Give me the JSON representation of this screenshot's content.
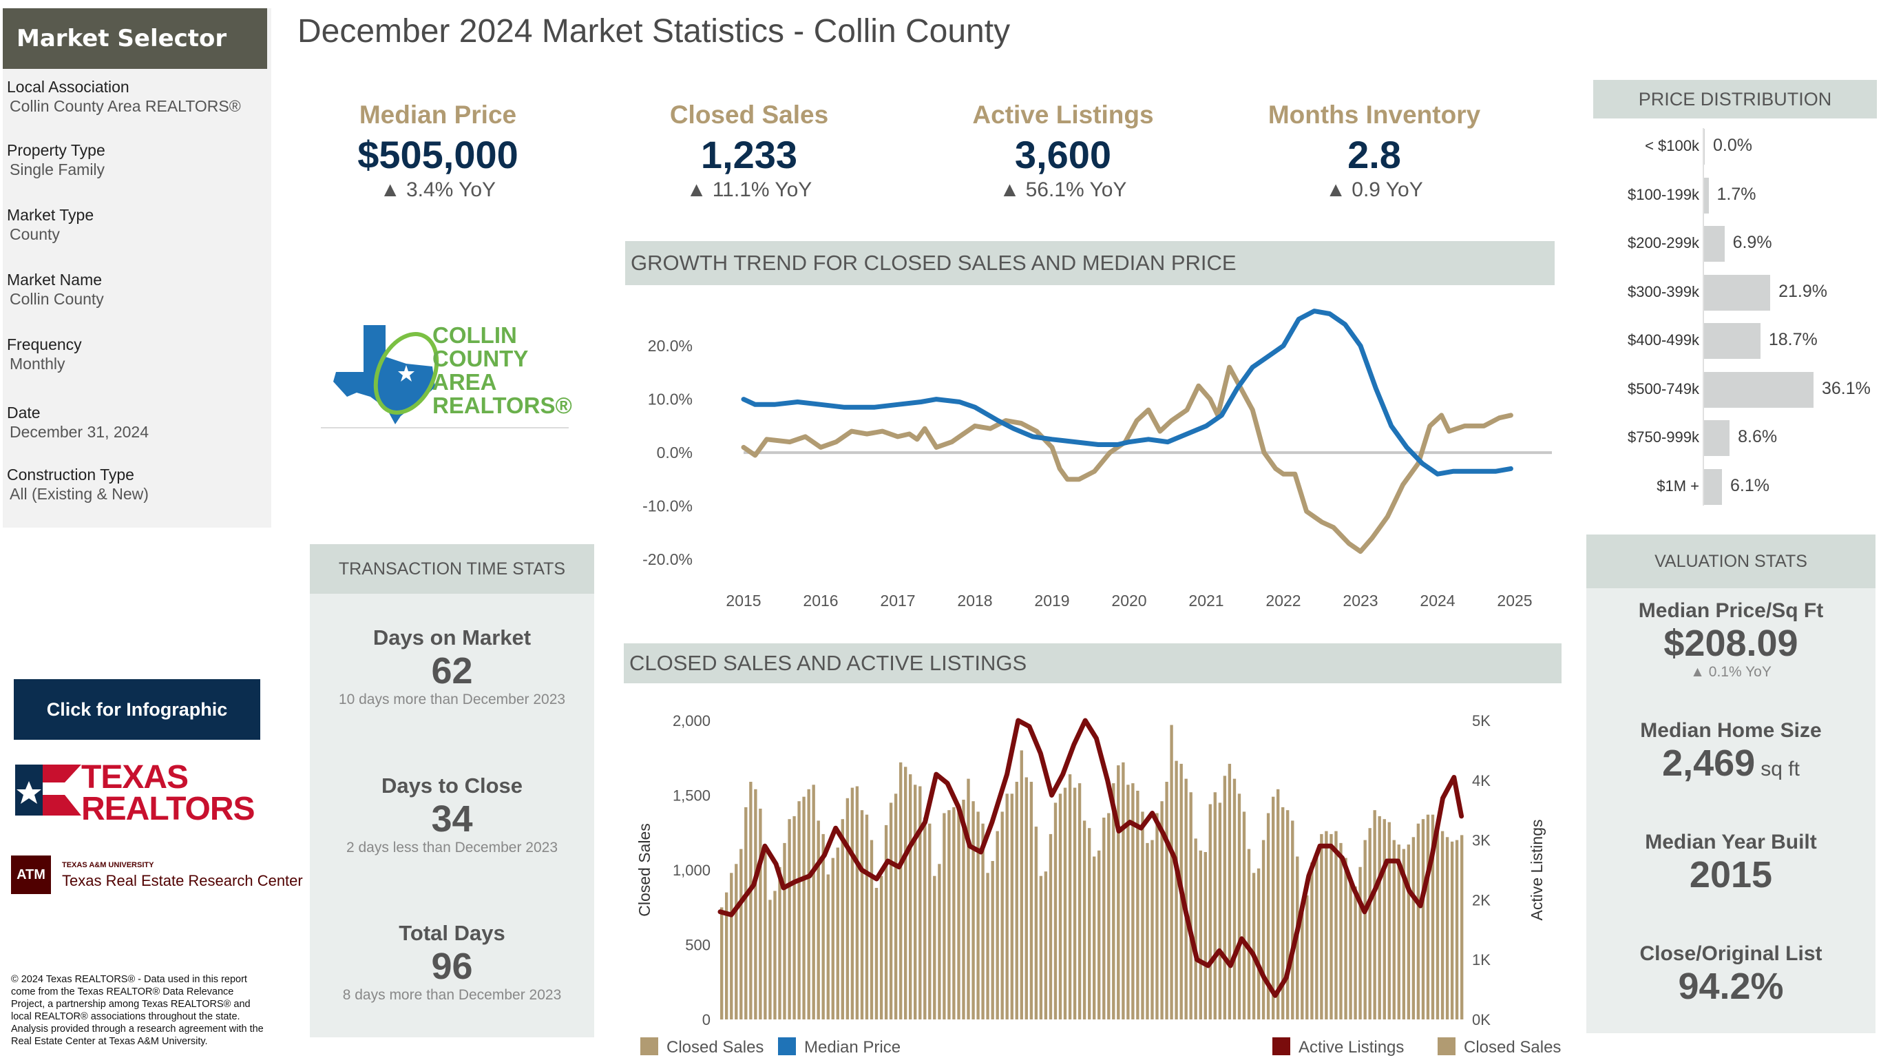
{
  "page_title": "December 2024 Market Statistics - Collin County",
  "selector": {
    "title": "Market Selector",
    "fields": [
      {
        "label": "Local Association",
        "value": "Collin County Area REALTORS®"
      },
      {
        "label": "Property Type",
        "value": "Single Family"
      },
      {
        "label": "Market Type",
        "value": "County"
      },
      {
        "label": "Market Name",
        "value": "Collin County"
      },
      {
        "label": "Frequency",
        "value": "Monthly"
      },
      {
        "label": "Date",
        "value": "December 31, 2024"
      },
      {
        "label": "Construction Type",
        "value": "All (Existing & New)"
      }
    ]
  },
  "logos": {
    "ccar_lines": [
      "COLLIN",
      "COUNTY",
      "AREA",
      "REALTORS®"
    ],
    "texas_realtors": [
      "TEXAS",
      "REALTORS"
    ],
    "tamu_small": "TEXAS A&M UNIVERSITY",
    "tamu_large": "Texas Real Estate Research Center",
    "tamu_mark": "ATM"
  },
  "infographic_button": "Click for Infographic",
  "footer_note": "© 2024 Texas REALTORS® - Data used in this report come from the Texas REALTOR® Data Relevance Project, a partnership among Texas REALTORS® and local REALTOR® associations throughout the state. Analysis provided through a research agreement with the Real Estate Center at Texas A&M University.",
  "kpis": [
    {
      "label": "Median Price",
      "value": "$505,000",
      "yoy": "▲ 3.4% YoY"
    },
    {
      "label": "Closed Sales",
      "value": "1,233",
      "yoy": "▲ 11.1% YoY"
    },
    {
      "label": "Active Listings",
      "value": "3,600",
      "yoy": "▲ 56.1% YoY"
    },
    {
      "label": "Months Inventory",
      "value": "2.8",
      "yoy": "▲ 0.9 YoY"
    }
  ],
  "growth_section_title": "GROWTH TREND FOR CLOSED SALES AND MEDIAN PRICE",
  "sales_section_title": "CLOSED SALES AND ACTIVE LISTINGS",
  "transaction": {
    "title": "TRANSACTION TIME STATS",
    "items": [
      {
        "label": "Days on Market",
        "value": "62",
        "note": "10 days more than December 2023"
      },
      {
        "label": "Days to Close",
        "value": "34",
        "note": "2 days less than December 2023"
      },
      {
        "label": "Total Days",
        "value": "96",
        "note": "8 days more than December 2023"
      }
    ]
  },
  "price_distribution": {
    "title": "PRICE DISTRIBUTION",
    "rows": [
      {
        "category": "< $100k",
        "value": "0.0%",
        "pct": 0.0
      },
      {
        "category": "$100-199k",
        "value": "1.7%",
        "pct": 1.7
      },
      {
        "category": "$200-299k",
        "value": "6.9%",
        "pct": 6.9
      },
      {
        "category": "$300-399k",
        "value": "21.9%",
        "pct": 21.9
      },
      {
        "category": "$400-499k",
        "value": "18.7%",
        "pct": 18.7
      },
      {
        "category": "$500-749k",
        "value": "36.1%",
        "pct": 36.1
      },
      {
        "category": "$750-999k",
        "value": "8.6%",
        "pct": 8.6
      },
      {
        "category": "$1M +",
        "value": "6.1%",
        "pct": 6.1
      }
    ]
  },
  "valuation": {
    "title": "VALUATION STATS",
    "items": [
      {
        "label": "Median Price/Sq Ft",
        "value": "$208.09",
        "note": "▲ 0.1% YoY",
        "unit": ""
      },
      {
        "label": "Median Home Size",
        "value": "2,469",
        "note": "",
        "unit": "sq ft"
      },
      {
        "label": "Median Year Built",
        "value": "2015",
        "note": "",
        "unit": ""
      },
      {
        "label": "Close/Original List",
        "value": "94.2%",
        "note": "",
        "unit": ""
      }
    ]
  },
  "colors": {
    "gold": "#b19b72",
    "blue": "#1f73b7",
    "maroon": "#7a0c0c",
    "navy": "#0b2d4f",
    "zero_line": "#c8c8c8"
  },
  "chart_data": [
    {
      "type": "line",
      "title": "GROWTH TREND FOR CLOSED SALES AND MEDIAN PRICE",
      "x_ticks": [
        "2015",
        "2016",
        "2017",
        "2018",
        "2019",
        "2020",
        "2021",
        "2022",
        "2023",
        "2024",
        "2025"
      ],
      "y_ticks": [
        "20.0%",
        "10.0%",
        "0.0%",
        "-10.0%",
        "-20.0%"
      ],
      "ylim": [
        -21,
        28
      ],
      "xlim": [
        2015,
        2025
      ],
      "series": [
        {
          "name": "Closed Sales",
          "color": "#b19b72",
          "points": [
            [
              2015.0,
              1
            ],
            [
              2015.15,
              -0.5
            ],
            [
              2015.3,
              2.5
            ],
            [
              2015.6,
              2
            ],
            [
              2015.8,
              3
            ],
            [
              2016.0,
              1
            ],
            [
              2016.2,
              2
            ],
            [
              2016.4,
              4
            ],
            [
              2016.6,
              3.5
            ],
            [
              2016.8,
              4
            ],
            [
              2017.0,
              3
            ],
            [
              2017.15,
              3.5
            ],
            [
              2017.25,
              2.5
            ],
            [
              2017.35,
              4.5
            ],
            [
              2017.5,
              1
            ],
            [
              2017.7,
              2
            ],
            [
              2017.9,
              4
            ],
            [
              2018.0,
              5
            ],
            [
              2018.2,
              4.5
            ],
            [
              2018.4,
              6
            ],
            [
              2018.6,
              5.5
            ],
            [
              2018.8,
              4
            ],
            [
              2019.0,
              1
            ],
            [
              2019.1,
              -3
            ],
            [
              2019.2,
              -5
            ],
            [
              2019.35,
              -5
            ],
            [
              2019.55,
              -3.5
            ],
            [
              2019.75,
              0
            ],
            [
              2019.95,
              2
            ],
            [
              2020.1,
              6
            ],
            [
              2020.25,
              8
            ],
            [
              2020.4,
              4
            ],
            [
              2020.55,
              6
            ],
            [
              2020.75,
              8
            ],
            [
              2020.9,
              12.5
            ],
            [
              2021.05,
              10
            ],
            [
              2021.15,
              7
            ],
            [
              2021.3,
              16
            ],
            [
              2021.45,
              12
            ],
            [
              2021.6,
              8
            ],
            [
              2021.75,
              0
            ],
            [
              2021.9,
              -3
            ],
            [
              2022.0,
              -4
            ],
            [
              2022.15,
              -4
            ],
            [
              2022.3,
              -11
            ],
            [
              2022.5,
              -13
            ],
            [
              2022.65,
              -14
            ],
            [
              2022.85,
              -17
            ],
            [
              2023.0,
              -18.5
            ],
            [
              2023.15,
              -16
            ],
            [
              2023.35,
              -12
            ],
            [
              2023.55,
              -6
            ],
            [
              2023.75,
              -2
            ],
            [
              2023.9,
              5
            ],
            [
              2024.05,
              7
            ],
            [
              2024.15,
              4
            ],
            [
              2024.35,
              5
            ],
            [
              2024.6,
              5
            ],
            [
              2024.8,
              6.5
            ],
            [
              2024.95,
              7
            ]
          ]
        },
        {
          "name": "Median Price",
          "color": "#1f73b7",
          "points": [
            [
              2015.0,
              10
            ],
            [
              2015.15,
              9
            ],
            [
              2015.4,
              9
            ],
            [
              2015.7,
              9.5
            ],
            [
              2016.0,
              9
            ],
            [
              2016.3,
              8.5
            ],
            [
              2016.7,
              8.5
            ],
            [
              2017.0,
              9
            ],
            [
              2017.3,
              9.5
            ],
            [
              2017.5,
              10
            ],
            [
              2017.8,
              9.5
            ],
            [
              2018.0,
              8.5
            ],
            [
              2018.3,
              6
            ],
            [
              2018.5,
              4.5
            ],
            [
              2018.75,
              3
            ],
            [
              2019.0,
              2.5
            ],
            [
              2019.3,
              2
            ],
            [
              2019.6,
              1.5
            ],
            [
              2019.85,
              1.5
            ],
            [
              2020.0,
              2
            ],
            [
              2020.25,
              2.5
            ],
            [
              2020.5,
              2
            ],
            [
              2020.75,
              3.5
            ],
            [
              2021.0,
              5
            ],
            [
              2021.2,
              7
            ],
            [
              2021.4,
              12
            ],
            [
              2021.6,
              16
            ],
            [
              2021.8,
              18
            ],
            [
              2022.0,
              20
            ],
            [
              2022.2,
              25
            ],
            [
              2022.4,
              26.5
            ],
            [
              2022.6,
              26
            ],
            [
              2022.8,
              24
            ],
            [
              2023.0,
              20
            ],
            [
              2023.2,
              12
            ],
            [
              2023.4,
              5
            ],
            [
              2023.6,
              1
            ],
            [
              2023.8,
              -2
            ],
            [
              2024.0,
              -4
            ],
            [
              2024.2,
              -3.5
            ],
            [
              2024.5,
              -3.5
            ],
            [
              2024.75,
              -3.5
            ],
            [
              2024.95,
              -3
            ]
          ]
        }
      ]
    },
    {
      "type": "bar",
      "title": "CLOSED SALES AND ACTIVE LISTINGS",
      "xlim": [
        2015,
        2025
      ],
      "y_left_label": "Closed Sales",
      "y_right_label": "Active Listings",
      "y_left_ticks": [
        "2,000",
        "1,500",
        "1,000",
        "500",
        "0"
      ],
      "y_left_lim": [
        0,
        2000
      ],
      "y_right_ticks": [
        "5K",
        "4K",
        "3K",
        "2K",
        "1K",
        "0K"
      ],
      "y_right_lim": [
        0,
        5000
      ],
      "legend_left": [
        "Closed Sales",
        "Median Price"
      ],
      "legend_right": [
        "Active Listings",
        "Closed Sales"
      ],
      "bar_series": {
        "name": "Closed Sales",
        "color": "#b19b72",
        "values": [
          750,
          850,
          980,
          1040,
          1140,
          1420,
          1590,
          1540,
          1410,
          1170,
          800,
          860,
          1020,
          1180,
          1340,
          1360,
          1460,
          1490,
          1540,
          1570,
          1330,
          1240,
          970,
          1080,
          1150,
          1340,
          1480,
          1550,
          1560,
          1400,
          1370,
          1200,
          880,
          960,
          1300,
          1450,
          1510,
          1720,
          1690,
          1640,
          1570,
          1560,
          1350,
          1310,
          960,
          1040,
          1380,
          1400,
          1420,
          1440,
          1470,
          1610,
          1460,
          1390,
          1310,
          980,
          1060,
          1260,
          1390,
          1510,
          1510,
          1590,
          1800,
          1620,
          1590,
          1290,
          960,
          990,
          1240,
          1450,
          1510,
          1550,
          1640,
          1550,
          1580,
          1330,
          1280,
          1090,
          1130,
          1350,
          1380,
          1580,
          1700,
          1720,
          1570,
          1580,
          1530,
          1390,
          1180,
          1200,
          1380,
          1460,
          1590,
          1970,
          1730,
          1710,
          1610,
          1520,
          1210,
          1130,
          1120,
          1440,
          1520,
          1450,
          1630,
          1710,
          1610,
          1510,
          1390,
          1140,
          980,
          1010,
          1200,
          1380,
          1490,
          1540,
          1420,
          1400,
          1330,
          1090,
          780,
          830,
          1050,
          1110,
          1240,
          1260,
          1240,
          1260,
          1180,
          1080,
          950,
          890,
          1020,
          1200,
          1280,
          1400,
          1360,
          1340,
          1320,
          1200,
          1170,
          1140,
          1170,
          1220,
          1310,
          1340,
          1370,
          1370,
          1320,
          1260,
          1220,
          1190,
          1200,
          1233
        ]
      },
      "line_series": {
        "name": "Active Listings",
        "color": "#7a0c0c",
        "points": [
          [
            2015.0,
            1800
          ],
          [
            2015.15,
            1750
          ],
          [
            2015.3,
            2000
          ],
          [
            2015.45,
            2250
          ],
          [
            2015.6,
            2900
          ],
          [
            2015.75,
            2600
          ],
          [
            2015.85,
            2200
          ],
          [
            2016.0,
            2300
          ],
          [
            2016.2,
            2400
          ],
          [
            2016.4,
            2750
          ],
          [
            2016.55,
            3200
          ],
          [
            2016.75,
            2800
          ],
          [
            2016.9,
            2500
          ],
          [
            2017.1,
            2350
          ],
          [
            2017.25,
            2650
          ],
          [
            2017.4,
            2550
          ],
          [
            2017.55,
            2900
          ],
          [
            2017.75,
            3300
          ],
          [
            2017.9,
            4100
          ],
          [
            2018.05,
            3950
          ],
          [
            2018.2,
            3550
          ],
          [
            2018.35,
            2900
          ],
          [
            2018.5,
            2800
          ],
          [
            2018.65,
            3300
          ],
          [
            2018.85,
            4100
          ],
          [
            2019.0,
            5000
          ],
          [
            2019.15,
            4900
          ],
          [
            2019.3,
            4450
          ],
          [
            2019.45,
            3750
          ],
          [
            2019.6,
            4100
          ],
          [
            2019.75,
            4600
          ],
          [
            2019.9,
            5000
          ],
          [
            2020.05,
            4700
          ],
          [
            2020.2,
            4000
          ],
          [
            2020.35,
            3150
          ],
          [
            2020.5,
            3300
          ],
          [
            2020.65,
            3200
          ],
          [
            2020.8,
            3450
          ],
          [
            2020.95,
            3100
          ],
          [
            2021.1,
            2700
          ],
          [
            2021.25,
            1800
          ],
          [
            2021.4,
            1000
          ],
          [
            2021.55,
            900
          ],
          [
            2021.7,
            1150
          ],
          [
            2021.85,
            900
          ],
          [
            2022.0,
            1350
          ],
          [
            2022.15,
            1100
          ],
          [
            2022.3,
            700
          ],
          [
            2022.45,
            400
          ],
          [
            2022.6,
            700
          ],
          [
            2022.75,
            1500
          ],
          [
            2022.9,
            2400
          ],
          [
            2023.05,
            2900
          ],
          [
            2023.2,
            2900
          ],
          [
            2023.35,
            2700
          ],
          [
            2023.5,
            2200
          ],
          [
            2023.65,
            1800
          ],
          [
            2023.8,
            2200
          ],
          [
            2023.95,
            2650
          ],
          [
            2024.1,
            2650
          ],
          [
            2024.25,
            2150
          ],
          [
            2024.4,
            1900
          ],
          [
            2024.55,
            2700
          ],
          [
            2024.7,
            3700
          ],
          [
            2024.85,
            4050
          ],
          [
            2024.95,
            3400
          ]
        ]
      }
    }
  ]
}
